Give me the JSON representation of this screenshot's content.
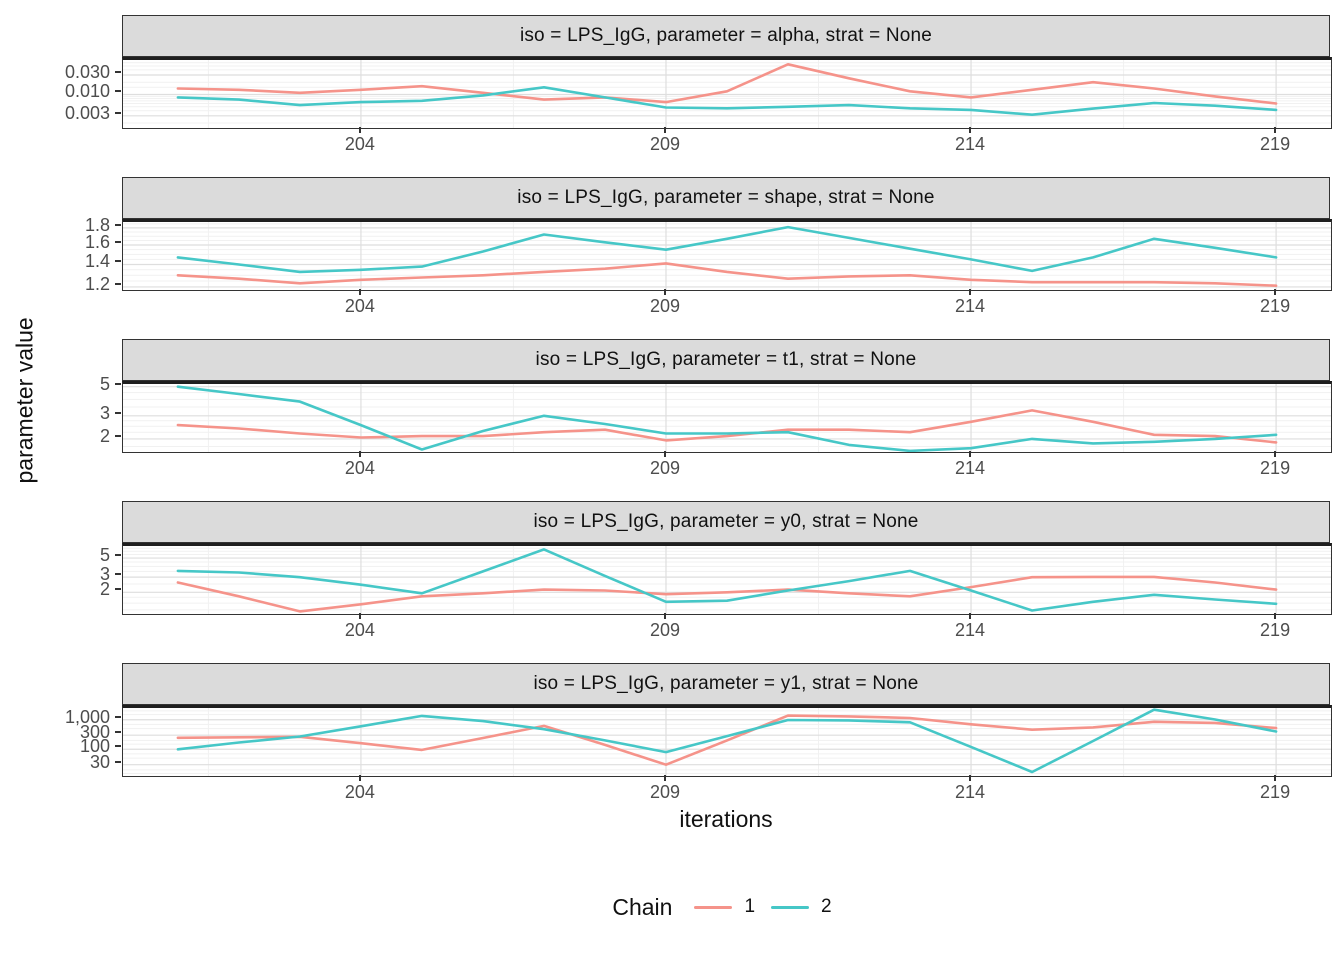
{
  "figure": {
    "background": "#ffffff",
    "strip_fill": "#DBDBDB",
    "grid_major_color": "#DEDEDE",
    "grid_minor_color": "#F1F1F1",
    "tick_label_color": "#4d4d4d"
  },
  "chart_data": {
    "type": "line",
    "title": "",
    "xlabel": "iterations",
    "ylabel": "parameter value",
    "legend": {
      "title": "Chain",
      "position": "bottom"
    },
    "series_meta": [
      {
        "name": "1",
        "color": "#F5938A"
      },
      {
        "name": "2",
        "color": "#46C7C7"
      }
    ],
    "x": [
      201,
      202,
      203,
      204,
      205,
      206,
      207,
      208,
      209,
      210,
      211,
      212,
      213,
      214,
      215,
      216,
      217,
      218,
      219
    ],
    "x_ticks": [
      204,
      209,
      214,
      219
    ],
    "x_minor_ticks": [
      201.5,
      206.5,
      211.5,
      216.5
    ],
    "x_range": [
      200.1,
      219.9
    ],
    "facets": [
      {
        "title": "iso = LPS_IgG, parameter = alpha, strat = None",
        "y_scale": "log10",
        "y_range": [
          0.00151,
          0.07
        ],
        "y_ticks": [
          {
            "label": "0.030",
            "value": 0.03
          },
          {
            "label": "0.010",
            "value": 0.01
          },
          {
            "label": "0.003",
            "value": 0.003
          }
        ],
        "y_minor": [
          0.002,
          0.004,
          0.005,
          0.006,
          0.007,
          0.008,
          0.009,
          0.015,
          0.02,
          0.04,
          0.05,
          0.06
        ],
        "series": [
          {
            "name": "1",
            "values": [
              0.014,
              0.013,
              0.011,
              0.013,
              0.016,
              0.011,
              0.0075,
              0.0085,
              0.0065,
              0.012,
              0.055,
              0.025,
              0.012,
              0.0085,
              0.013,
              0.02,
              0.014,
              0.009,
              0.006
            ]
          },
          {
            "name": "2",
            "values": [
              0.0085,
              0.0075,
              0.0055,
              0.0065,
              0.007,
              0.0095,
              0.015,
              0.0085,
              0.0048,
              0.0046,
              0.005,
              0.0055,
              0.0046,
              0.0042,
              0.0032,
              0.0045,
              0.0062,
              0.0053,
              0.0042
            ]
          }
        ]
      },
      {
        "title": "iso = LPS_IgG, parameter = shape, strat = None",
        "y_scale": "log10",
        "y_range": [
          1.175,
          1.874
        ],
        "y_ticks": [
          {
            "label": "1.8",
            "value": 1.8
          },
          {
            "label": "1.6",
            "value": 1.6
          },
          {
            "label": "1.4",
            "value": 1.4
          },
          {
            "label": "1.2",
            "value": 1.2
          }
        ],
        "y_minor": [
          1.25,
          1.3,
          1.35,
          1.45,
          1.5,
          1.55,
          1.65,
          1.7,
          1.75,
          1.85
        ],
        "series": [
          {
            "name": "1",
            "values": [
              1.3,
              1.27,
              1.23,
              1.26,
              1.28,
              1.3,
              1.33,
              1.36,
              1.41,
              1.33,
              1.27,
              1.29,
              1.3,
              1.26,
              1.24,
              1.24,
              1.24,
              1.23,
              1.21
            ]
          },
          {
            "name": "2",
            "values": [
              1.47,
              1.4,
              1.33,
              1.35,
              1.38,
              1.53,
              1.72,
              1.63,
              1.55,
              1.67,
              1.81,
              1.68,
              1.56,
              1.45,
              1.34,
              1.47,
              1.67,
              1.57,
              1.47
            ]
          }
        ]
      },
      {
        "title": "iso = LPS_IgG, parameter = t1, strat = None",
        "y_scale": "log10",
        "y_range": [
          1.59,
          5.24
        ],
        "y_ticks": [
          {
            "label": "5",
            "value": 5
          },
          {
            "label": "3",
            "value": 3
          },
          {
            "label": "2",
            "value": 2
          }
        ],
        "y_minor": [
          1.75,
          2.25,
          2.5,
          2.75,
          3.5,
          4,
          4.5
        ],
        "series": [
          {
            "name": "1",
            "values": [
              2.55,
              2.4,
              2.2,
              2.05,
              2.1,
              2.1,
              2.25,
              2.35,
              1.95,
              2.1,
              2.35,
              2.35,
              2.25,
              2.7,
              3.3,
              2.7,
              2.15,
              2.1,
              1.88
            ]
          },
          {
            "name": "2",
            "values": [
              5.0,
              4.4,
              3.85,
              2.55,
              1.66,
              2.3,
              3.0,
              2.6,
              2.2,
              2.2,
              2.25,
              1.8,
              1.62,
              1.7,
              2.0,
              1.85,
              1.9,
              2.0,
              2.15
            ]
          }
        ]
      },
      {
        "title": "iso = LPS_IgG, parameter = y0, strat = None",
        "y_scale": "log10",
        "y_range": [
          1.12,
          6.9
        ],
        "y_ticks": [
          {
            "label": "5",
            "value": 5
          },
          {
            "label": "3",
            "value": 3
          },
          {
            "label": "2",
            "value": 2
          }
        ],
        "y_minor": [
          1.25,
          1.5,
          1.75,
          2.5,
          3.5,
          4,
          4.5,
          5.5,
          6,
          6.5
        ],
        "series": [
          {
            "name": "1",
            "values": [
              2.6,
              1.8,
              1.2,
              1.45,
              1.8,
              1.95,
              2.15,
              2.1,
              1.9,
              2.0,
              2.15,
              1.95,
              1.8,
              2.3,
              3.0,
              3.02,
              3.02,
              2.6,
              2.15
            ]
          },
          {
            "name": "2",
            "values": [
              3.55,
              3.4,
              3.0,
              2.45,
              1.95,
              3.5,
              6.3,
              3.1,
              1.55,
              1.6,
              2.1,
              2.7,
              3.55,
              2.1,
              1.23,
              1.55,
              1.87,
              1.65,
              1.47
            ]
          }
        ]
      },
      {
        "title": "iso = LPS_IgG, parameter = y1, strat = None",
        "y_scale": "log10",
        "y_range": [
          12.4,
          2504
        ],
        "y_ticks": [
          {
            "label": "1,000",
            "value": 1000
          },
          {
            "label": "300",
            "value": 300
          },
          {
            "label": "100",
            "value": 100
          },
          {
            "label": "30",
            "value": 30
          }
        ],
        "y_minor": [
          15,
          20,
          50,
          70,
          150,
          200,
          500,
          700,
          1500,
          2000
        ],
        "series": [
          {
            "name": "1",
            "values": [
              245,
              255,
              265,
              160,
              95,
              240,
              620,
              140,
              30,
              200,
              1380,
              1300,
              1150,
              700,
              460,
              550,
              850,
              780,
              520
            ]
          },
          {
            "name": "2",
            "values": [
              100,
              170,
              270,
              600,
              1350,
              900,
              480,
              200,
              80,
              280,
              980,
              950,
              820,
              120,
              17,
              190,
              2200,
              1020,
              400
            ]
          }
        ]
      }
    ]
  }
}
